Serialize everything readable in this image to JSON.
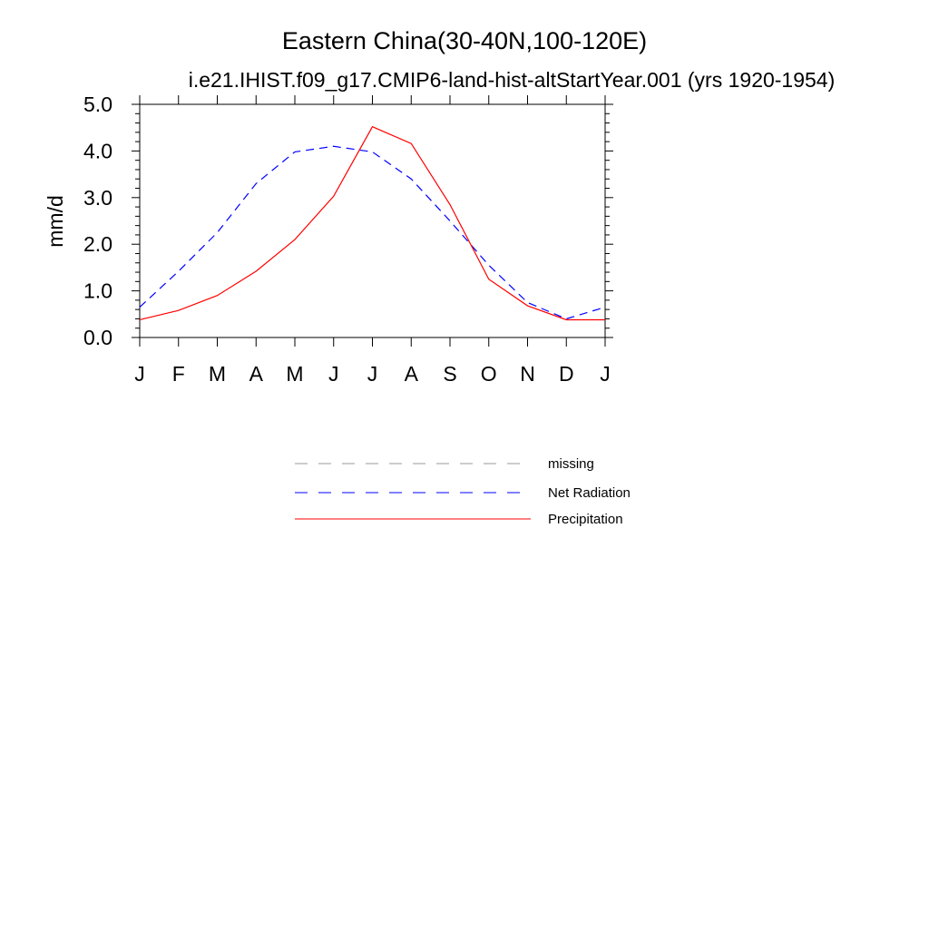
{
  "chart_data": {
    "type": "line",
    "title": "Eastern China(30-40N,100-120E)",
    "subtitle": "i.e21.IHIST.f09_g17.CMIP6-land-hist-altStartYear.001 (yrs 1920-1954)",
    "xlabel": "",
    "ylabel": "mm/d",
    "categories": [
      "J",
      "F",
      "M",
      "A",
      "M",
      "J",
      "J",
      "A",
      "S",
      "O",
      "N",
      "D",
      "J"
    ],
    "ylim": [
      0,
      5
    ],
    "yticks": [
      "0.0",
      "1.0",
      "2.0",
      "3.0",
      "4.0",
      "5.0"
    ],
    "series": [
      {
        "name": "Net Radiation",
        "color": "#0000ff",
        "style": "dashed",
        "values": [
          0.65,
          1.42,
          2.25,
          3.3,
          3.98,
          4.1,
          3.98,
          3.4,
          2.5,
          1.55,
          0.75,
          0.4,
          0.65
        ]
      },
      {
        "name": "Precipitation",
        "color": "#ff0000",
        "style": "solid",
        "values": [
          0.38,
          0.58,
          0.9,
          1.42,
          2.1,
          3.03,
          4.52,
          4.16,
          2.85,
          1.25,
          0.68,
          0.38,
          0.38
        ]
      }
    ],
    "legend": {
      "position": "bottom",
      "entries": [
        {
          "name": "missing",
          "color": "#999999",
          "style": "dashed"
        },
        {
          "name": "Net Radiation",
          "color": "#0000ff",
          "style": "dashed"
        },
        {
          "name": "Precipitation",
          "color": "#ff0000",
          "style": "solid"
        }
      ]
    },
    "grid": false
  }
}
